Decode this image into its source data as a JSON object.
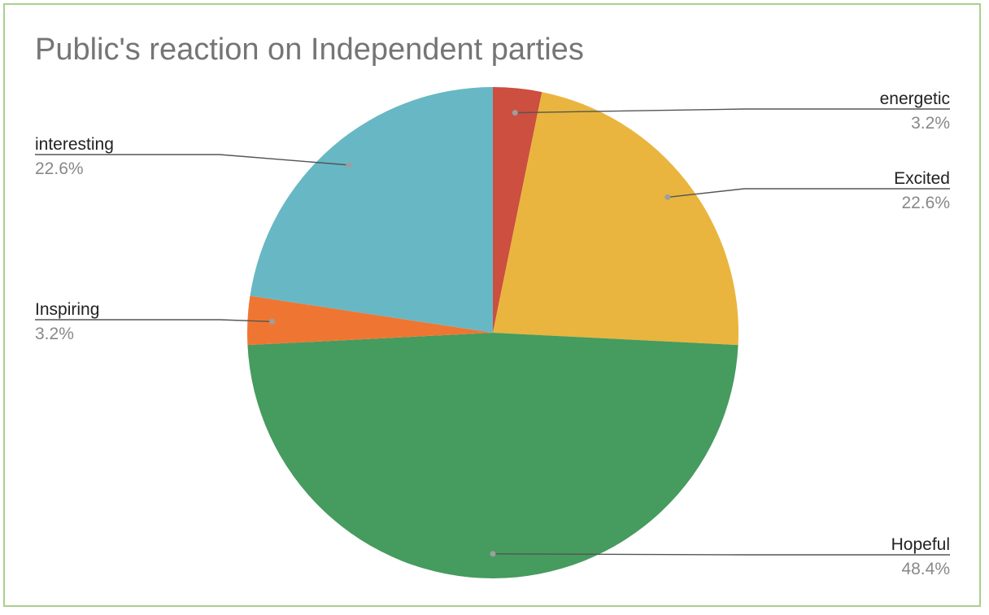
{
  "chart_data": {
    "type": "pie",
    "title": "Public's reaction on Independent parties",
    "slices": [
      {
        "label": "energetic",
        "value": 3.2,
        "value_label": "3.2%",
        "color": "#cc4f3f"
      },
      {
        "label": "Excited",
        "value": 22.6,
        "value_label": "22.6%",
        "color": "#e9b53e"
      },
      {
        "label": "Hopeful",
        "value": 48.4,
        "value_label": "48.4%",
        "color": "#469b5f"
      },
      {
        "label": "Inspiring",
        "value": 3.2,
        "value_label": "3.2%",
        "color": "#ef7632"
      },
      {
        "label": "interesting",
        "value": 22.6,
        "value_label": "22.6%",
        "color": "#67b8c4"
      }
    ],
    "legend": "labels-with-leader-lines"
  }
}
